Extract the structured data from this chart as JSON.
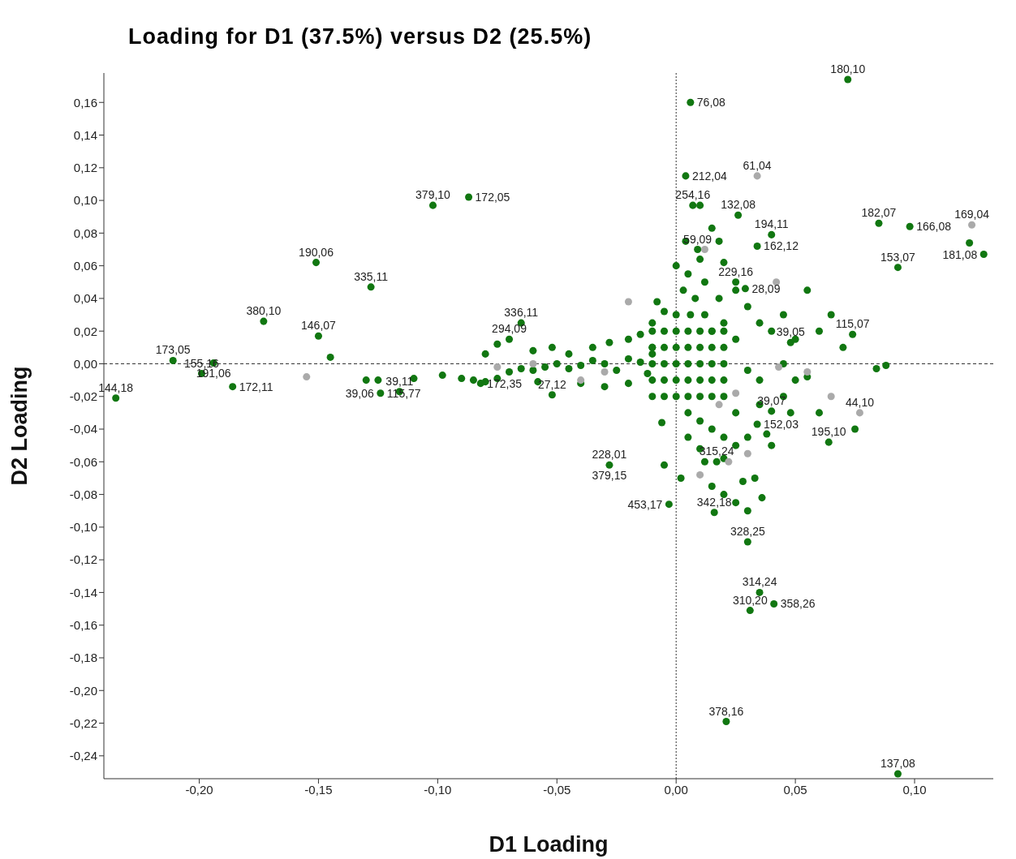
{
  "chart_data": {
    "type": "scatter",
    "title": "Loading for D1 (37.5%) versus D2 (25.5%)",
    "xlabel": "D1 Loading",
    "ylabel": "D2 Loading",
    "xlim": [
      -0.24,
      0.133
    ],
    "xticks": [
      {
        "value": -0.2,
        "label": "-0,20"
      },
      {
        "value": -0.15,
        "label": "-0,15"
      },
      {
        "value": -0.1,
        "label": "-0,10"
      },
      {
        "value": -0.05,
        "label": "-0,05"
      },
      {
        "value": 0,
        "label": "0,00"
      },
      {
        "value": 0.05,
        "label": "0,05"
      },
      {
        "value": 0.1,
        "label": "0,10"
      }
    ],
    "ylim": [
      -0.254,
      0.178
    ],
    "yticks": [
      {
        "value": -0.24,
        "label": "-0,24"
      },
      {
        "value": -0.22,
        "label": "-0,22"
      },
      {
        "value": -0.2,
        "label": "-0,20"
      },
      {
        "value": -0.18,
        "label": "-0,18"
      },
      {
        "value": -0.16,
        "label": "-0,16"
      },
      {
        "value": -0.14,
        "label": "-0,14"
      },
      {
        "value": -0.12,
        "label": "-0,12"
      },
      {
        "value": -0.1,
        "label": "-0,10"
      },
      {
        "value": -0.08,
        "label": "-0,08"
      },
      {
        "value": -0.06,
        "label": "-0,06"
      },
      {
        "value": -0.04,
        "label": "-0,04"
      },
      {
        "value": -0.02,
        "label": "-0,02"
      },
      {
        "value": 0,
        "label": "0,00"
      },
      {
        "value": 0.02,
        "label": "0,02"
      },
      {
        "value": 0.04,
        "label": "0,04"
      },
      {
        "value": 0.06,
        "label": "0,06"
      },
      {
        "value": 0.08,
        "label": "0,08"
      },
      {
        "value": 0.1,
        "label": "0,10"
      },
      {
        "value": 0.12,
        "label": "0,12"
      },
      {
        "value": 0.14,
        "label": "0,14"
      },
      {
        "value": 0.16,
        "label": "0,16"
      }
    ],
    "grid": false,
    "legend": false,
    "marker": "circle",
    "ref_lines": [
      {
        "axis": "x",
        "value": 0,
        "color": "#333333",
        "line_style": "dotted"
      },
      {
        "axis": "y",
        "value": 0,
        "color": "#333333",
        "line_style": "dashed"
      }
    ],
    "series": [
      {
        "color": "#117711",
        "x": [
          0.072,
          0.006,
          0.004,
          0.026,
          0.007,
          0.085,
          0.098,
          0.123,
          0.04,
          0.009,
          0.034,
          0.129,
          0.093,
          0.025,
          0.029,
          0.074,
          0.048,
          0.04,
          0.034,
          0.064,
          0.017,
          0.016,
          -0.003,
          0.03,
          0.035,
          0.041,
          0.031,
          0.021,
          0.093,
          -0.028,
          -0.052,
          -0.082,
          -0.116,
          -0.124,
          -0.15,
          -0.07,
          -0.065,
          -0.151,
          -0.128,
          -0.102,
          -0.087,
          -0.173,
          -0.211,
          -0.194,
          -0.199,
          -0.186,
          -0.235,
          0.084,
          -0.13,
          -0.125,
          -0.11,
          -0.098,
          -0.09,
          -0.085,
          -0.08,
          -0.075,
          -0.07,
          -0.065,
          -0.06,
          -0.055,
          -0.05,
          -0.045,
          -0.04,
          -0.035,
          -0.03,
          -0.025,
          -0.02,
          -0.015,
          -0.01,
          -0.012,
          -0.145,
          -0.06,
          -0.058,
          -0.04,
          -0.03,
          -0.02,
          -0.075,
          -0.08,
          -0.052,
          -0.045,
          -0.035,
          -0.028,
          -0.02,
          -0.015,
          -0.01,
          0.0,
          0.005,
          0.01,
          0.003,
          0.008,
          0.012,
          0.0,
          0.006,
          0.012,
          0.018,
          0.025,
          0.03,
          0.035,
          0.04,
          0.045,
          0.02,
          0.025,
          0.015,
          0.018,
          0.015,
          0.02,
          0.004,
          0.01,
          -0.005,
          -0.01,
          -0.008,
          -0.01,
          -0.005,
          0,
          0.005,
          0.01,
          0.015,
          0.02,
          -0.01,
          -0.005,
          0,
          0.005,
          0.01,
          0.015,
          0.02,
          -0.01,
          -0.005,
          0,
          0.005,
          0.01,
          0.015,
          0.02,
          -0.01,
          -0.005,
          0,
          0.005,
          0.01,
          0.015,
          0.02,
          -0.01,
          -0.005,
          0,
          0.005,
          0.01,
          0.015,
          0.02,
          0.005,
          0.01,
          0.005,
          0.015,
          0.02,
          0.025,
          0.03,
          0.038,
          0.025,
          0.035,
          0.045,
          0.05,
          0.035,
          0.03,
          0.045,
          0.055,
          -0.006,
          0.012,
          0.02,
          0.028,
          0.015,
          0.02,
          0.025,
          0.033,
          0.03,
          0.036,
          0.002,
          -0.005,
          0.01,
          0.088,
          0.07,
          0.06,
          0.055,
          0.065,
          0.05,
          0.06,
          0.048,
          0.04,
          0.075
        ],
        "values": [
          0.174,
          0.16,
          0.115,
          0.091,
          0.097,
          0.086,
          0.084,
          0.074,
          0.079,
          0.07,
          0.072,
          0.067,
          0.059,
          0.05,
          0.046,
          0.018,
          0.013,
          -0.029,
          -0.037,
          -0.048,
          -0.06,
          -0.091,
          -0.086,
          -0.109,
          -0.14,
          -0.147,
          -0.151,
          -0.219,
          -0.251,
          -0.062,
          -0.019,
          -0.012,
          -0.017,
          -0.018,
          0.017,
          0.015,
          0.025,
          0.062,
          0.047,
          0.097,
          0.102,
          0.026,
          0.002,
          0.0005,
          -0.006,
          -0.014,
          -0.021,
          -0.003,
          -0.01,
          -0.01,
          -0.009,
          -0.007,
          -0.009,
          -0.01,
          -0.011,
          -0.009,
          -0.005,
          -0.003,
          -0.004,
          -0.002,
          0.0,
          -0.003,
          -0.001,
          0.002,
          0.0,
          -0.004,
          0.003,
          0.001,
          0.006,
          -0.006,
          0.004,
          0.008,
          -0.011,
          -0.012,
          -0.014,
          -0.012,
          0.012,
          0.006,
          0.01,
          0.006,
          0.01,
          0.013,
          0.015,
          0.018,
          0.01,
          0.06,
          0.055,
          0.064,
          0.045,
          0.04,
          0.05,
          0.03,
          0.03,
          0.03,
          0.04,
          0.045,
          0.035,
          0.025,
          0.02,
          0.03,
          0.025,
          0.015,
          0.02,
          0.075,
          0.083,
          0.062,
          0.075,
          0.097,
          0.032,
          0.025,
          0.038,
          -0.02,
          -0.02,
          -0.02,
          -0.02,
          -0.02,
          -0.02,
          -0.02,
          -0.01,
          -0.01,
          -0.01,
          -0.01,
          -0.01,
          -0.01,
          -0.01,
          0,
          0,
          0,
          0,
          0,
          0,
          0,
          0.01,
          0.01,
          0.01,
          0.01,
          0.01,
          0.01,
          0.01,
          0.02,
          0.02,
          0.02,
          0.02,
          0.02,
          0.02,
          0.02,
          -0.03,
          -0.035,
          -0.045,
          -0.04,
          -0.045,
          -0.05,
          -0.045,
          -0.043,
          -0.03,
          -0.025,
          -0.02,
          -0.01,
          -0.01,
          -0.004,
          0.0,
          -0.008,
          -0.036,
          -0.06,
          -0.058,
          -0.072,
          -0.075,
          -0.08,
          -0.085,
          -0.07,
          -0.09,
          -0.082,
          -0.07,
          -0.062,
          -0.052,
          -0.001,
          0.01,
          0.02,
          0.045,
          0.03,
          0.015,
          -0.03,
          -0.03,
          -0.05,
          -0.04
        ]
      },
      {
        "color": "#aaaaaa",
        "x": [
          0.034,
          0.124,
          0.077,
          -0.155,
          -0.02,
          -0.04,
          -0.03,
          -0.075,
          0.012,
          0.042,
          0.043,
          0.065,
          0.018,
          0.025,
          0.03,
          0.022,
          0.01,
          -0.06,
          0.055
        ],
        "values": [
          0.115,
          0.085,
          -0.03,
          -0.008,
          0.038,
          -0.01,
          -0.005,
          -0.002,
          0.07,
          0.05,
          -0.002,
          -0.02,
          -0.025,
          -0.018,
          -0.055,
          -0.06,
          -0.068,
          0.0,
          -0.005
        ]
      }
    ],
    "annotations": [
      {
        "text": "180,10",
        "x": 0.072,
        "y": 0.174
      },
      {
        "text": "76,08",
        "x": 0.006,
        "y": 0.16
      },
      {
        "text": "212,04",
        "x": 0.004,
        "y": 0.115
      },
      {
        "text": "61,04",
        "x": 0.034,
        "y": 0.115
      },
      {
        "text": "132,08",
        "x": 0.026,
        "y": 0.091
      },
      {
        "text": "254,16",
        "x": 0.007,
        "y": 0.097
      },
      {
        "text": "182,07",
        "x": 0.085,
        "y": 0.086
      },
      {
        "text": "169,04",
        "x": 0.124,
        "y": 0.085
      },
      {
        "text": "166,08",
        "x": 0.098,
        "y": 0.084
      },
      {
        "text": "194,11",
        "x": 0.04,
        "y": 0.079
      },
      {
        "text": "59,09",
        "x": 0.009,
        "y": 0.07
      },
      {
        "text": "162,12",
        "x": 0.034,
        "y": 0.072
      },
      {
        "text": "181,08",
        "x": 0.129,
        "y": 0.067
      },
      {
        "text": "153,07",
        "x": 0.093,
        "y": 0.059
      },
      {
        "text": "229,16",
        "x": 0.025,
        "y": 0.05
      },
      {
        "text": "28,09",
        "x": 0.029,
        "y": 0.046
      },
      {
        "text": "115,07",
        "x": 0.074,
        "y": 0.018
      },
      {
        "text": "39,05",
        "x": 0.048,
        "y": 0.013
      },
      {
        "text": "44,10",
        "x": 0.077,
        "y": -0.03
      },
      {
        "text": "39,07",
        "x": 0.04,
        "y": -0.029
      },
      {
        "text": "152,03",
        "x": 0.034,
        "y": -0.037
      },
      {
        "text": "195,10",
        "x": 0.064,
        "y": -0.048
      },
      {
        "text": "315,24",
        "x": 0.017,
        "y": -0.06
      },
      {
        "text": "342,18",
        "x": 0.016,
        "y": -0.091
      },
      {
        "text": "453,17",
        "x": -0.003,
        "y": -0.086
      },
      {
        "text": "328,25",
        "x": 0.03,
        "y": -0.109
      },
      {
        "text": "314,24",
        "x": 0.035,
        "y": -0.14
      },
      {
        "text": "358,26",
        "x": 0.041,
        "y": -0.147
      },
      {
        "text": "310,20",
        "x": 0.031,
        "y": -0.151
      },
      {
        "text": "378,16",
        "x": 0.021,
        "y": -0.219
      },
      {
        "text": "137,08",
        "x": 0.093,
        "y": -0.251
      },
      {
        "text": "228,01",
        "x": -0.028,
        "y": -0.062
      },
      {
        "text": "379,15",
        "x": -0.028,
        "y": -0.062
      },
      {
        "text": "27,12",
        "x": -0.052,
        "y": -0.019
      },
      {
        "text": "172,35",
        "x": -0.082,
        "y": -0.012
      },
      {
        "text": "39,11",
        "x": -0.116,
        "y": -0.017
      },
      {
        "text": "115,77",
        "x": -0.124,
        "y": -0.018
      },
      {
        "text": "39,06",
        "x": -0.124,
        "y": -0.018
      },
      {
        "text": "146,07",
        "x": -0.15,
        "y": 0.017
      },
      {
        "text": "294,09",
        "x": -0.07,
        "y": 0.015
      },
      {
        "text": "336,11",
        "x": -0.065,
        "y": 0.025
      },
      {
        "text": "190,06",
        "x": -0.151,
        "y": 0.062
      },
      {
        "text": "335,11",
        "x": -0.128,
        "y": 0.047
      },
      {
        "text": "379,10",
        "x": -0.102,
        "y": 0.097
      },
      {
        "text": "172,05",
        "x": -0.087,
        "y": 0.102
      },
      {
        "text": "380,10",
        "x": -0.173,
        "y": 0.026
      },
      {
        "text": "173,05",
        "x": -0.211,
        "y": 0.002
      },
      {
        "text": "191,06",
        "x": -0.194,
        "y": 0.0005
      },
      {
        "text": "155,16",
        "x": -0.199,
        "y": -0.006
      },
      {
        "text": "172,11",
        "x": -0.186,
        "y": -0.014
      },
      {
        "text": "144,18",
        "x": -0.235,
        "y": -0.021
      }
    ]
  }
}
